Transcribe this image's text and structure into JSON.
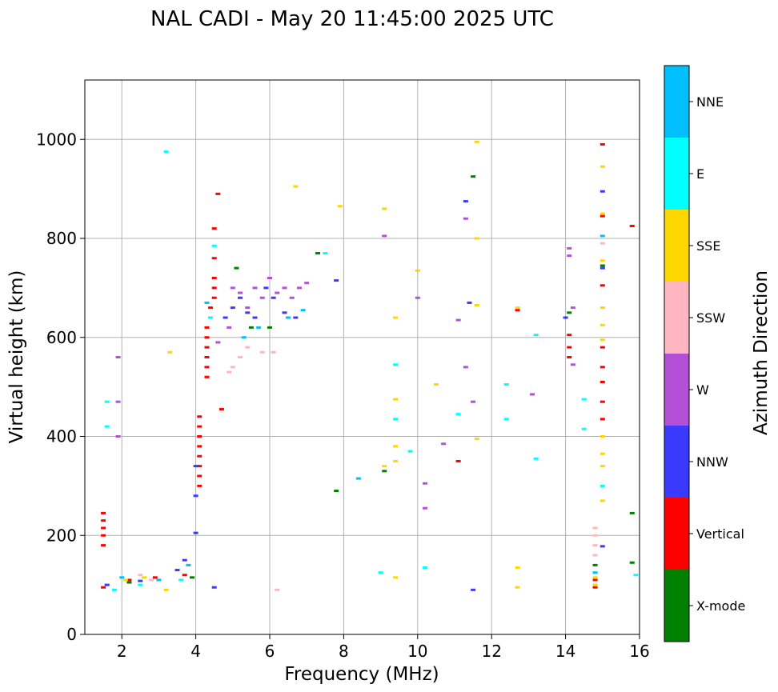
{
  "chart_data": {
    "type": "scatter",
    "title": "NAL CADI - May 20 11:45:00 2025 UTC",
    "xlabel": "Frequency (MHz)",
    "ylabel": "Virtual height (km)",
    "xlim": [
      1,
      16
    ],
    "ylim": [
      0,
      1120
    ],
    "xticks": [
      2,
      4,
      6,
      8,
      10,
      12,
      14,
      16
    ],
    "yticks": [
      0,
      200,
      400,
      600,
      800,
      1000
    ],
    "grid": true,
    "colorbar": {
      "label": "Azimuth Direction",
      "categories": [
        {
          "name": "X-mode",
          "color": "#008000"
        },
        {
          "name": "Vertical",
          "color": "#ff0000"
        },
        {
          "name": "NNW",
          "color": "#3a3aff"
        },
        {
          "name": "W",
          "color": "#b450d8"
        },
        {
          "name": "SSW",
          "color": "#ffb6c1"
        },
        {
          "name": "SSE",
          "color": "#ffd700"
        },
        {
          "name": "E",
          "color": "#00ffff"
        },
        {
          "name": "NNE",
          "color": "#00bfff"
        }
      ]
    },
    "series": [
      {
        "name": "Vertical",
        "points": [
          [
            1.5,
            95
          ],
          [
            1.5,
            180
          ],
          [
            1.5,
            200
          ],
          [
            1.5,
            215
          ],
          [
            1.5,
            230
          ],
          [
            1.5,
            245
          ],
          [
            2.2,
            110
          ],
          [
            2.9,
            115
          ],
          [
            3.7,
            120
          ],
          [
            4.1,
            300
          ],
          [
            4.1,
            320
          ],
          [
            4.1,
            340
          ],
          [
            4.1,
            360
          ],
          [
            4.1,
            380
          ],
          [
            4.1,
            400
          ],
          [
            4.1,
            420
          ],
          [
            4.1,
            440
          ],
          [
            4.3,
            520
          ],
          [
            4.3,
            540
          ],
          [
            4.3,
            560
          ],
          [
            4.3,
            580
          ],
          [
            4.3,
            600
          ],
          [
            4.3,
            620
          ],
          [
            4.4,
            640
          ],
          [
            4.4,
            660
          ],
          [
            4.5,
            680
          ],
          [
            4.5,
            700
          ],
          [
            4.5,
            720
          ],
          [
            4.5,
            760
          ],
          [
            4.6,
            890
          ],
          [
            4.5,
            820
          ],
          [
            4.7,
            455
          ],
          [
            11.1,
            350
          ],
          [
            12.7,
            655
          ],
          [
            14.1,
            560
          ],
          [
            14.1,
            580
          ],
          [
            14.1,
            605
          ],
          [
            14.8,
            95
          ],
          [
            14.8,
            110
          ],
          [
            15.0,
            435
          ],
          [
            15.0,
            470
          ],
          [
            15.0,
            510
          ],
          [
            15.0,
            540
          ],
          [
            15.0,
            580
          ],
          [
            15.0,
            705
          ],
          [
            15.0,
            845
          ],
          [
            15.0,
            990
          ],
          [
            15.8,
            825
          ]
        ]
      },
      {
        "name": "NNW",
        "points": [
          [
            1.6,
            100
          ],
          [
            2.5,
            108
          ],
          [
            3.5,
            130
          ],
          [
            3.7,
            150
          ],
          [
            4.0,
            205
          ],
          [
            4.0,
            280
          ],
          [
            4.0,
            340
          ],
          [
            4.5,
            95
          ],
          [
            4.8,
            640
          ],
          [
            5.0,
            660
          ],
          [
            5.2,
            680
          ],
          [
            5.4,
            650
          ],
          [
            5.6,
            640
          ],
          [
            5.9,
            700
          ],
          [
            6.1,
            680
          ],
          [
            6.4,
            650
          ],
          [
            6.7,
            640
          ],
          [
            7.8,
            715
          ],
          [
            11.3,
            875
          ],
          [
            11.4,
            670
          ],
          [
            11.5,
            90
          ],
          [
            14.0,
            640
          ],
          [
            15.0,
            178
          ],
          [
            15.0,
            895
          ],
          [
            15.0,
            740
          ]
        ]
      },
      {
        "name": "W",
        "points": [
          [
            1.9,
            400
          ],
          [
            1.9,
            470
          ],
          [
            1.9,
            560
          ],
          [
            4.6,
            590
          ],
          [
            4.9,
            620
          ],
          [
            5.0,
            700
          ],
          [
            5.2,
            690
          ],
          [
            5.4,
            660
          ],
          [
            5.6,
            700
          ],
          [
            5.8,
            680
          ],
          [
            6.0,
            720
          ],
          [
            6.2,
            690
          ],
          [
            6.4,
            700
          ],
          [
            6.6,
            680
          ],
          [
            6.8,
            700
          ],
          [
            7.0,
            710
          ],
          [
            9.1,
            805
          ],
          [
            10.0,
            680
          ],
          [
            10.2,
            255
          ],
          [
            10.2,
            305
          ],
          [
            10.7,
            385
          ],
          [
            11.1,
            635
          ],
          [
            11.3,
            540
          ],
          [
            11.3,
            840
          ],
          [
            11.5,
            470
          ],
          [
            13.1,
            485
          ],
          [
            14.1,
            765
          ],
          [
            14.1,
            780
          ],
          [
            14.2,
            545
          ],
          [
            14.2,
            660
          ]
        ]
      },
      {
        "name": "SSW",
        "points": [
          [
            2.5,
            120
          ],
          [
            2.8,
            110
          ],
          [
            4.9,
            530
          ],
          [
            5.0,
            540
          ],
          [
            5.2,
            560
          ],
          [
            5.4,
            580
          ],
          [
            5.8,
            570
          ],
          [
            6.1,
            570
          ],
          [
            6.2,
            90
          ],
          [
            14.8,
            160
          ],
          [
            14.8,
            180
          ],
          [
            14.8,
            200
          ],
          [
            14.8,
            215
          ],
          [
            15.0,
            790
          ]
        ]
      },
      {
        "name": "SSE",
        "points": [
          [
            2.1,
            110
          ],
          [
            2.6,
            115
          ],
          [
            3.2,
            90
          ],
          [
            3.3,
            570
          ],
          [
            9.1,
            340
          ],
          [
            9.1,
            860
          ],
          [
            9.4,
            115
          ],
          [
            9.4,
            350
          ],
          [
            9.4,
            380
          ],
          [
            9.4,
            475
          ],
          [
            9.4,
            640
          ],
          [
            10.0,
            735
          ],
          [
            10.5,
            505
          ],
          [
            11.6,
            395
          ],
          [
            11.6,
            665
          ],
          [
            11.6,
            800
          ],
          [
            11.6,
            995
          ],
          [
            12.7,
            95
          ],
          [
            12.7,
            135
          ],
          [
            12.7,
            660
          ],
          [
            14.8,
            100
          ],
          [
            14.8,
            115
          ],
          [
            15.0,
            270
          ],
          [
            15.0,
            340
          ],
          [
            15.0,
            365
          ],
          [
            15.0,
            400
          ],
          [
            15.0,
            595
          ],
          [
            15.0,
            625
          ],
          [
            15.0,
            660
          ],
          [
            15.0,
            755
          ],
          [
            15.0,
            850
          ],
          [
            15.0,
            945
          ],
          [
            6.7,
            905
          ],
          [
            7.9,
            865
          ]
        ]
      },
      {
        "name": "E",
        "points": [
          [
            1.6,
            420
          ],
          [
            1.6,
            470
          ],
          [
            1.8,
            90
          ],
          [
            2.5,
            100
          ],
          [
            3.2,
            975
          ],
          [
            3.6,
            110
          ],
          [
            4.4,
            640
          ],
          [
            4.5,
            785
          ],
          [
            7.5,
            770
          ],
          [
            9.0,
            125
          ],
          [
            9.4,
            435
          ],
          [
            9.4,
            545
          ],
          [
            9.8,
            370
          ],
          [
            10.2,
            135
          ],
          [
            11.1,
            445
          ],
          [
            12.4,
            435
          ],
          [
            12.4,
            505
          ],
          [
            13.2,
            355
          ],
          [
            13.2,
            605
          ],
          [
            14.5,
            415
          ],
          [
            14.5,
            475
          ],
          [
            15.0,
            300
          ],
          [
            15.9,
            120
          ]
        ]
      },
      {
        "name": "NNE",
        "points": [
          [
            2.0,
            115
          ],
          [
            3.0,
            110
          ],
          [
            3.8,
            140
          ],
          [
            4.3,
            670
          ],
          [
            5.3,
            600
          ],
          [
            5.7,
            620
          ],
          [
            6.5,
            640
          ],
          [
            6.9,
            655
          ],
          [
            8.4,
            315
          ],
          [
            14.8,
            125
          ],
          [
            15.0,
            805
          ]
        ]
      },
      {
        "name": "X-mode",
        "points": [
          [
            2.2,
            105
          ],
          [
            3.9,
            115
          ],
          [
            5.5,
            620
          ],
          [
            5.1,
            740
          ],
          [
            6.0,
            620
          ],
          [
            7.3,
            770
          ],
          [
            7.8,
            290
          ],
          [
            9.1,
            330
          ],
          [
            11.5,
            925
          ],
          [
            14.1,
            650
          ],
          [
            14.8,
            140
          ],
          [
            15.0,
            745
          ],
          [
            15.8,
            145
          ],
          [
            15.8,
            245
          ]
        ]
      }
    ]
  }
}
